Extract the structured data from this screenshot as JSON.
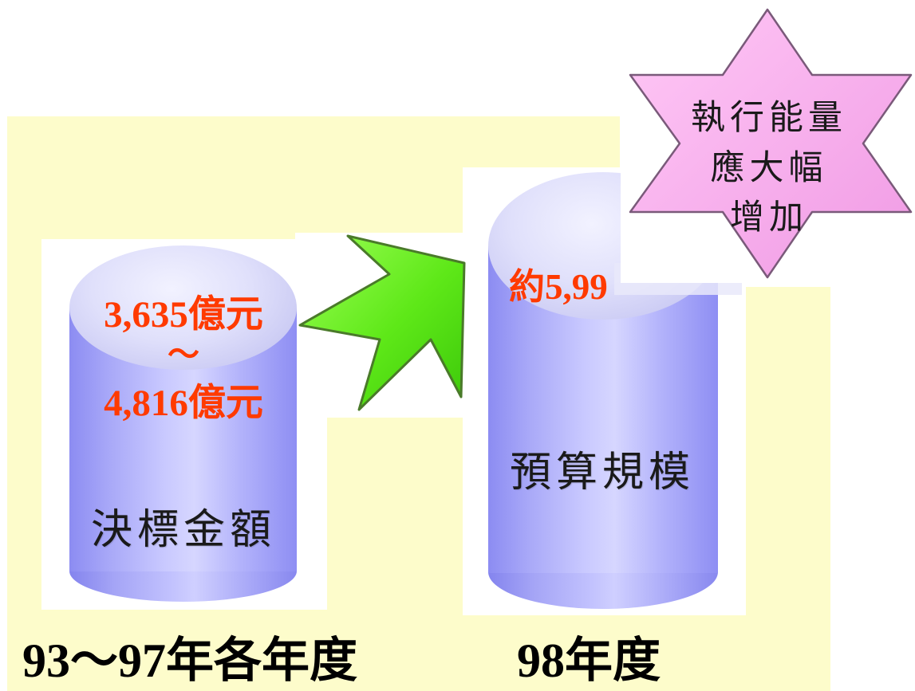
{
  "left_cylinder": {
    "value_top": "3,635億元",
    "tilde": "～",
    "value_bottom": "4,816億元",
    "label": "決標金額"
  },
  "right_cylinder": {
    "value_partial": "約5,99",
    "label": "預算規模"
  },
  "star": {
    "line1": "執行能量",
    "line2": "應大幅",
    "line3": "增加",
    "color": "#f4a6ea"
  },
  "years": {
    "left": "93～97年各年度",
    "right": "98年度"
  },
  "colors": {
    "background_panel": "#fdfccb",
    "value_text": "#ff3a00",
    "arrow": "#66ee22",
    "cylinder": "#b3b3fb"
  }
}
